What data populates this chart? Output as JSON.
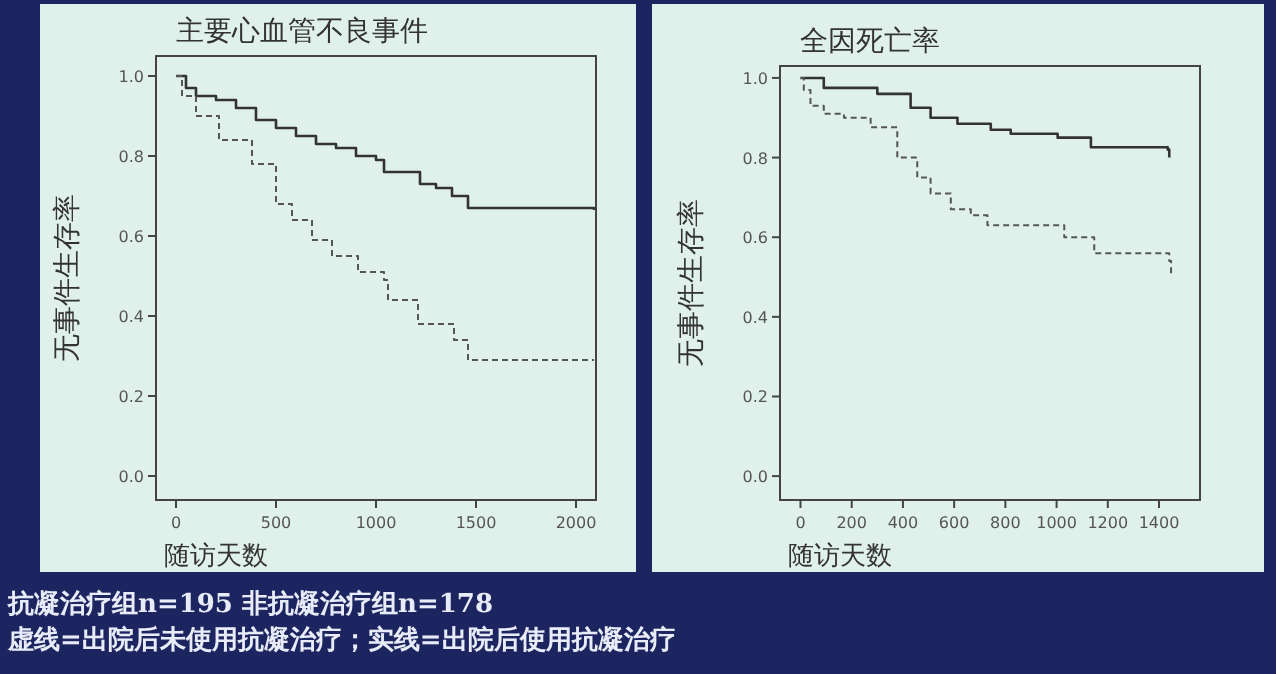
{
  "chart_data": [
    {
      "type": "step",
      "title": "主要心血管不良事件",
      "xlabel": "随访天数",
      "ylabel": "无事件生存率",
      "xlim": [
        -100,
        2100
      ],
      "ylim": [
        -0.06,
        1.05
      ],
      "xticks": [
        0,
        500,
        1000,
        1500,
        2000
      ],
      "yticks": [
        {
          "value": 0,
          "label": "0.0"
        },
        {
          "value": 0.2,
          "label": "0.2"
        },
        {
          "value": 0.4,
          "label": "0.4"
        },
        {
          "value": 0.6,
          "label": "0.6"
        },
        {
          "value": 0.8,
          "label": "0.8"
        },
        {
          "value": 1,
          "label": "1.0"
        }
      ],
      "grid": false,
      "series": [
        {
          "color": "#333333",
          "line_style": "solid",
          "x": [
            0,
            50,
            100,
            200,
            300,
            400,
            500,
            600,
            700,
            800,
            900,
            1000,
            1040,
            1100,
            1220,
            1300,
            1380,
            1460,
            2090
          ],
          "values": [
            1.0,
            0.97,
            0.95,
            0.94,
            0.92,
            0.89,
            0.87,
            0.85,
            0.83,
            0.82,
            0.8,
            0.79,
            0.76,
            0.76,
            0.73,
            0.72,
            0.7,
            0.67,
            0.665
          ]
        },
        {
          "color": "#555555",
          "line_style": "dashed",
          "x": [
            0,
            30,
            100,
            215,
            380,
            500,
            580,
            680,
            780,
            910,
            1040,
            1060,
            1210,
            1390,
            1460,
            2090
          ],
          "values": [
            1.0,
            0.95,
            0.9,
            0.84,
            0.78,
            0.68,
            0.64,
            0.59,
            0.55,
            0.51,
            0.49,
            0.44,
            0.38,
            0.34,
            0.29,
            0.29
          ]
        }
      ],
      "annotations": [
        "抗凝治疗组n=195  非抗凝治疗组n=178",
        "虚线=出院后未使用抗凝治疗；实线=出院后使用抗凝治疗"
      ]
    },
    {
      "type": "step",
      "title": "全因死亡率",
      "xlabel": "随访天数",
      "ylabel": "无事件生存率",
      "xlim": [
        -80,
        1560
      ],
      "ylim": [
        -0.06,
        1.03
      ],
      "xticks": [
        0,
        200,
        400,
        600,
        800,
        1000,
        1200,
        1400
      ],
      "yticks": [
        {
          "value": 0,
          "label": "0.0"
        },
        {
          "value": 0.2,
          "label": "0.2"
        },
        {
          "value": 0.4,
          "label": "0.4"
        },
        {
          "value": 0.6,
          "label": "0.6"
        },
        {
          "value": 0.8,
          "label": "0.8"
        },
        {
          "value": 1,
          "label": "1.0"
        }
      ],
      "grid": false,
      "series": [
        {
          "color": "#333333",
          "line_style": "solid",
          "x": [
            0,
            91,
            300,
            430,
            508,
            613,
            743,
            821,
            1004,
            1134,
            1434,
            1440
          ],
          "values": [
            1.0,
            0.975,
            0.96,
            0.925,
            0.9,
            0.885,
            0.87,
            0.86,
            0.85,
            0.826,
            0.82,
            0.8
          ]
        },
        {
          "color": "#555555",
          "line_style": "dashed",
          "x": [
            0,
            13,
            39,
            91,
            170,
            274,
            378,
            456,
            508,
            587,
            665,
            730,
            1030,
            1147,
            1440,
            1447
          ],
          "values": [
            1.0,
            0.97,
            0.93,
            0.91,
            0.9,
            0.876,
            0.8,
            0.75,
            0.71,
            0.67,
            0.655,
            0.63,
            0.6,
            0.56,
            0.54,
            0.5
          ]
        }
      ]
    }
  ]
}
